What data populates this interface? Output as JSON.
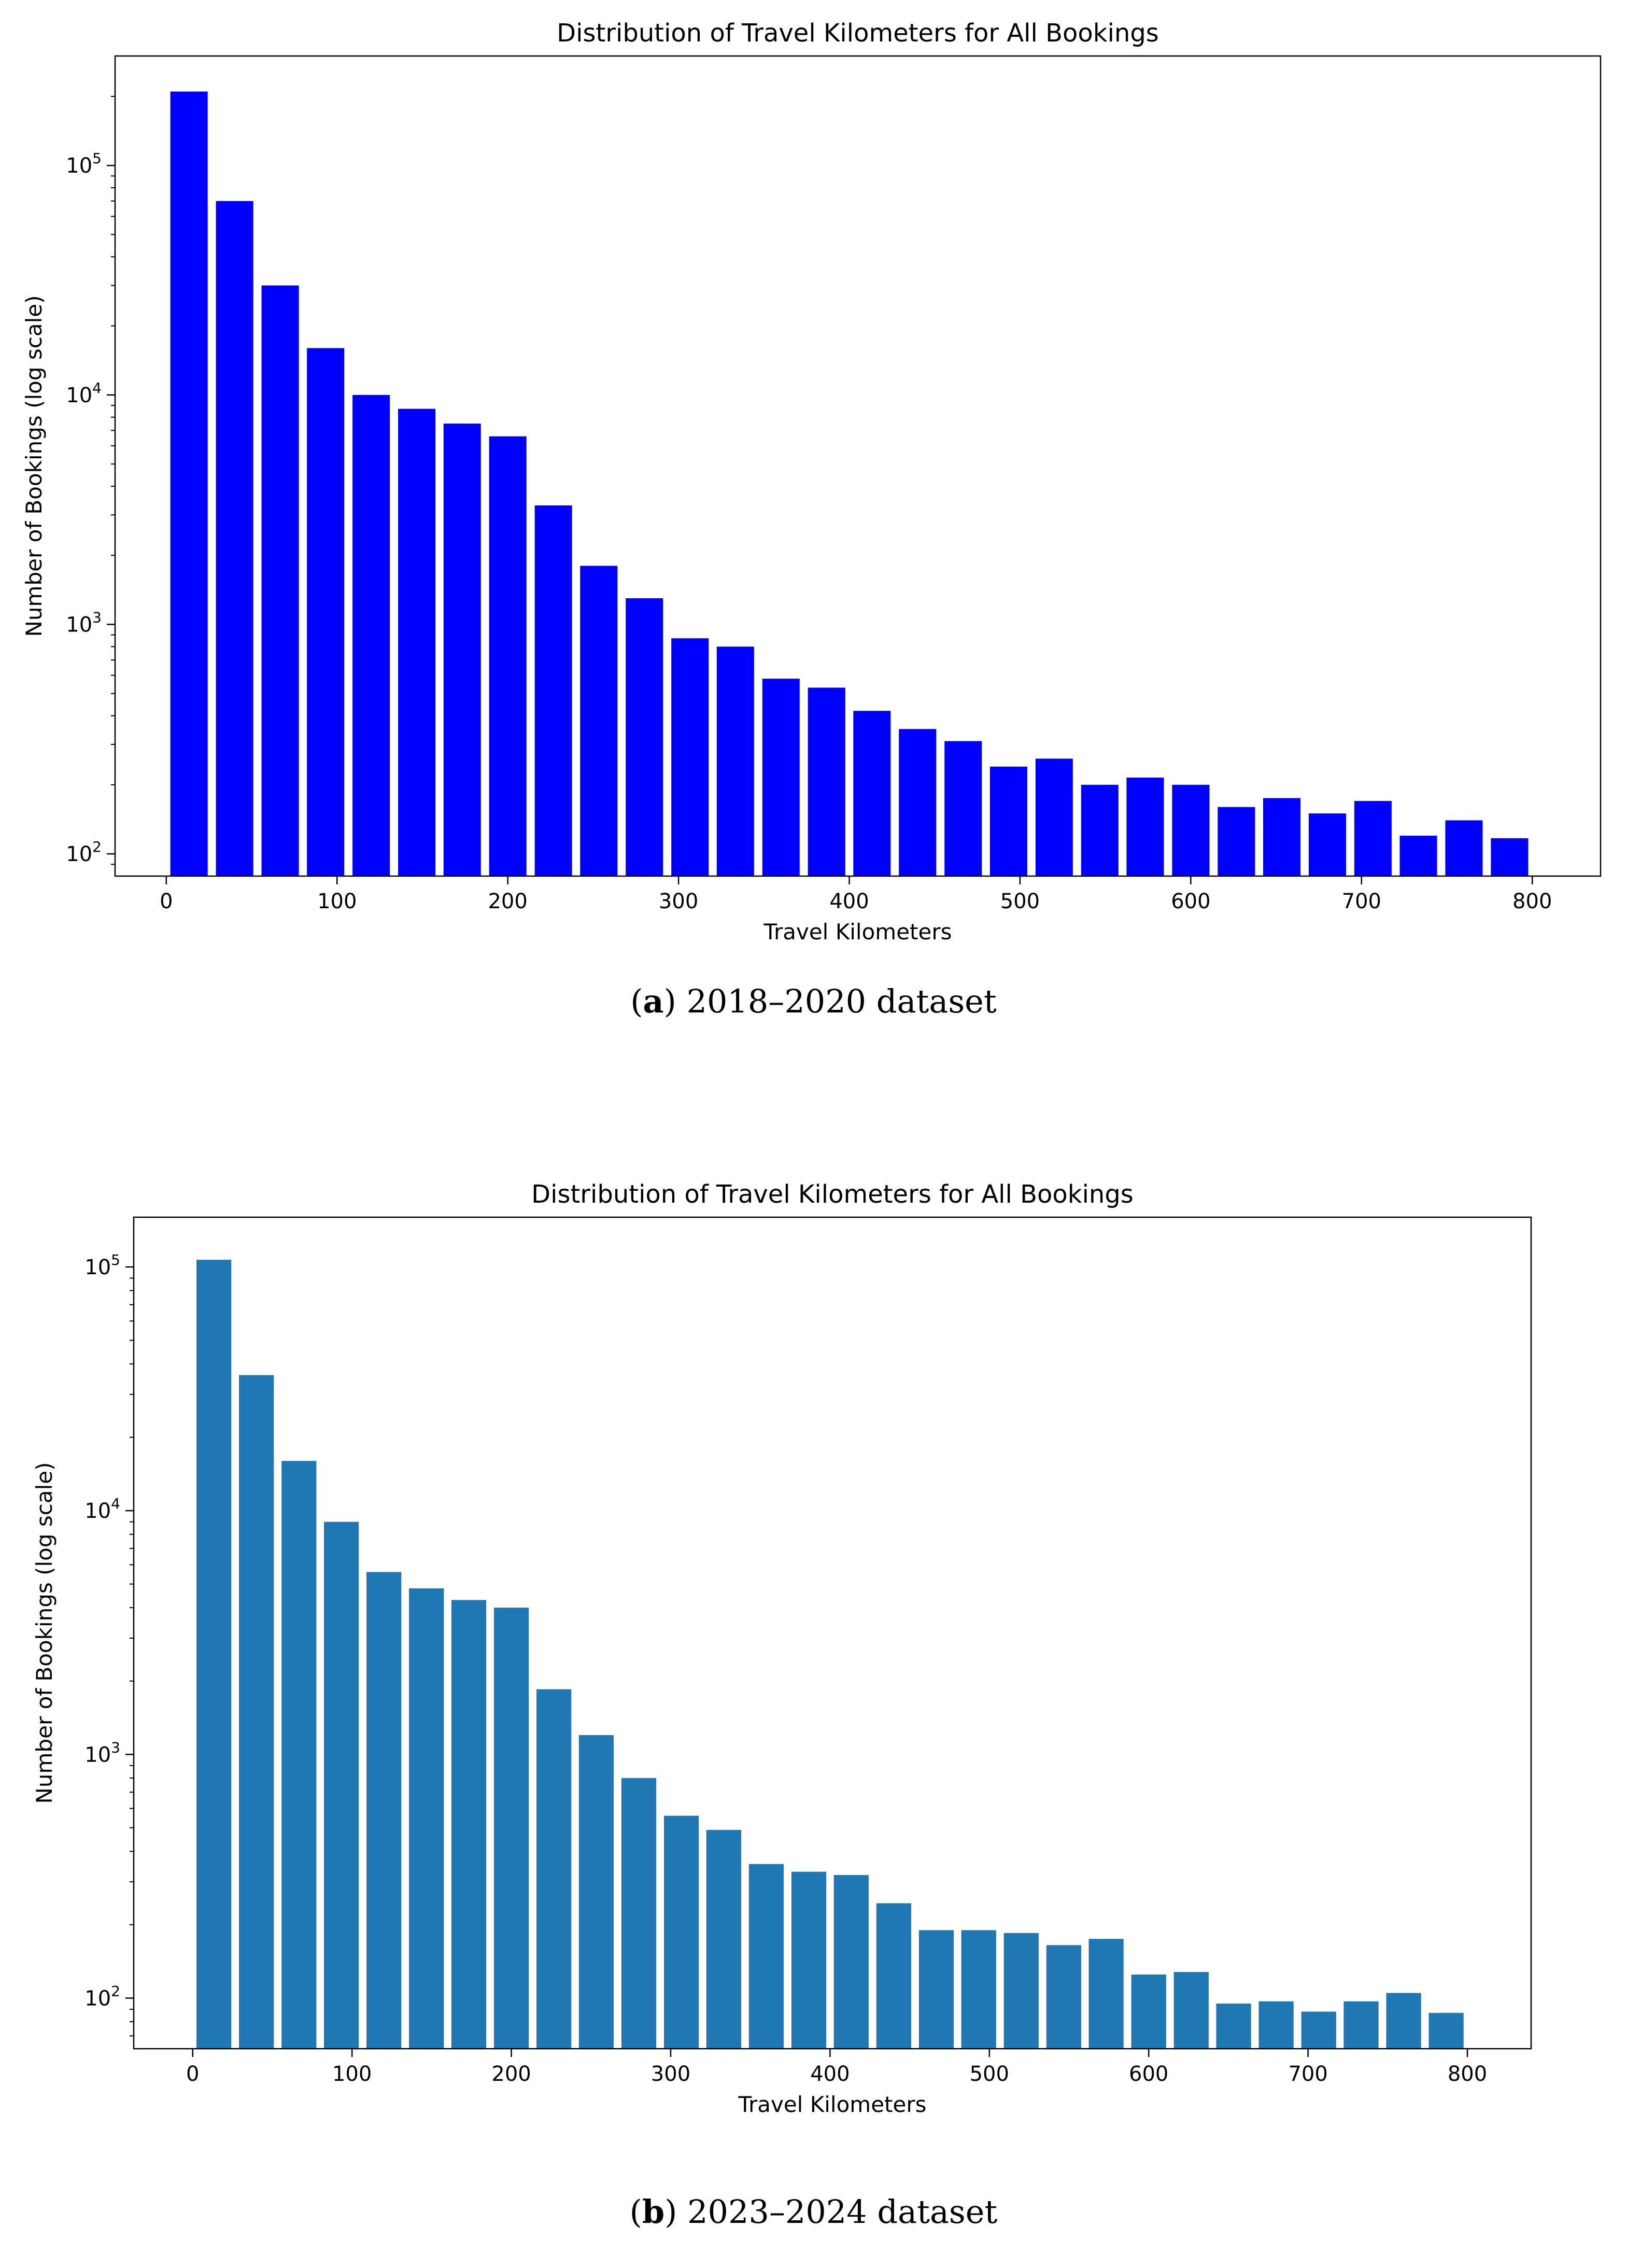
{
  "chart_data": [
    {
      "type": "bar",
      "title": "Distribution of Travel Kilometers for All Bookings",
      "xlabel": "Travel Kilometers",
      "ylabel": "Number of Bookings (log scale)",
      "yscale": "log",
      "bar_color": "#0000ff",
      "xlim": [
        -30,
        840
      ],
      "ylim": [
        80,
        300000
      ],
      "x_ticks": [
        0,
        100,
        200,
        300,
        400,
        500,
        600,
        700,
        800
      ],
      "y_ticks": [
        100,
        1000,
        10000,
        100000
      ],
      "y_tick_labels": [
        {
          "base": "10",
          "exp": "2"
        },
        {
          "base": "10",
          "exp": "3"
        },
        {
          "base": "10",
          "exp": "4"
        },
        {
          "base": "10",
          "exp": "5"
        }
      ],
      "bin_width": 26.67,
      "x": [
        13.3,
        40,
        66.7,
        93.3,
        120,
        146.7,
        173.3,
        200,
        226.7,
        253.3,
        280,
        306.7,
        333.3,
        360,
        386.7,
        413.3,
        440,
        466.7,
        493.3,
        520,
        546.7,
        573.3,
        600,
        626.7,
        653.3,
        680,
        706.7,
        733.3,
        760,
        786.7
      ],
      "values": [
        210000,
        70000,
        30000,
        16000,
        10000,
        8700,
        7500,
        6600,
        3300,
        1800,
        1300,
        870,
        800,
        580,
        530,
        420,
        350,
        310,
        240,
        260,
        200,
        215,
        200,
        160,
        175,
        150,
        170,
        120,
        140,
        117
      ],
      "caption": {
        "label": "a",
        "text": " 2018–2020 dataset"
      }
    },
    {
      "type": "bar",
      "title": "Distribution of Travel Kilometers for All Bookings",
      "xlabel": "Travel Kilometers",
      "ylabel": "Number of Bookings (log scale)",
      "yscale": "log",
      "bar_color": "#1f77b4",
      "xlim": [
        -37,
        840
      ],
      "ylim": [
        62,
        160000
      ],
      "x_ticks": [
        0,
        100,
        200,
        300,
        400,
        500,
        600,
        700,
        800
      ],
      "y_ticks": [
        100,
        1000,
        10000,
        100000
      ],
      "y_tick_labels": [
        {
          "base": "10",
          "exp": "2"
        },
        {
          "base": "10",
          "exp": "3"
        },
        {
          "base": "10",
          "exp": "4"
        },
        {
          "base": "10",
          "exp": "5"
        }
      ],
      "bin_width": 26.67,
      "x": [
        13.3,
        40,
        66.7,
        93.3,
        120,
        146.7,
        173.3,
        200,
        226.7,
        253.3,
        280,
        306.7,
        333.3,
        360,
        386.7,
        413.3,
        440,
        466.7,
        493.3,
        520,
        546.7,
        573.3,
        600,
        626.7,
        653.3,
        680,
        706.7,
        733.3,
        760,
        786.7
      ],
      "values": [
        107000,
        36000,
        16000,
        9000,
        5600,
        4800,
        4300,
        4000,
        1850,
        1200,
        800,
        560,
        490,
        355,
        330,
        320,
        245,
        190,
        190,
        185,
        165,
        175,
        125,
        128,
        95,
        97,
        88,
        97,
        105,
        87
      ],
      "caption": {
        "label": "b",
        "text": " 2023–2024 dataset"
      }
    }
  ]
}
